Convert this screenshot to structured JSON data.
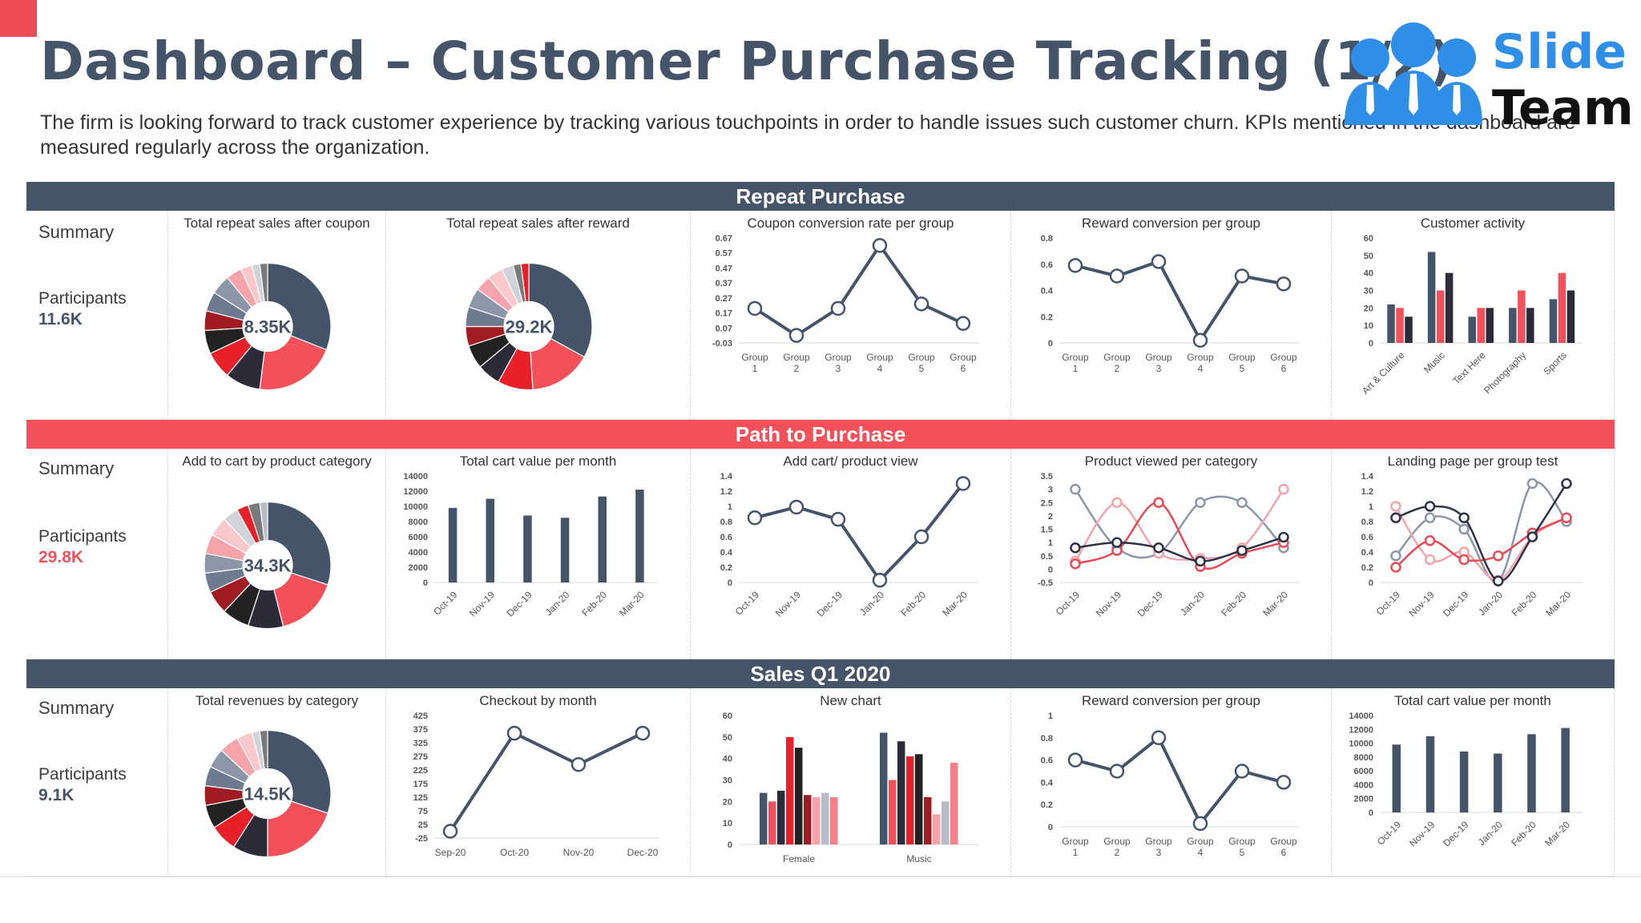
{
  "header": {
    "title": "Dashboard – Customer Purchase Tracking (1/2)",
    "description": "The firm is looking forward to track customer experience by tracking various touchpoints in order to handle issues such customer churn. KPIs mentioned in the dashboard are measured regularly across the organization.",
    "logo_line1": "Slide",
    "logo_line2": "Team"
  },
  "colors": {
    "dark": "#46546a",
    "red": "#f4505a",
    "darkred": "#a01c22",
    "brightred": "#e8202a",
    "black": "#222222",
    "pink": "#f6a3ab",
    "grey": "#b5bcc7"
  },
  "sections": [
    {
      "band": "Repeat Purchase",
      "summary": "Summary",
      "participants_label": "Participants",
      "participants_value": "11.6K"
    },
    {
      "band": "Path to Purchase",
      "summary": "Summary",
      "participants_label": "Participants",
      "participants_value": "29.8K"
    },
    {
      "band": "Sales Q1 2020",
      "summary": "Summary",
      "participants_label": "Participants",
      "participants_value": "9.1K"
    }
  ],
  "chart_data": [
    {
      "id": "r1c1",
      "type": "pie",
      "title": "Total repeat sales after coupon",
      "center_label": "8.35K",
      "values": [
        31,
        21,
        9,
        7,
        6,
        5,
        5,
        5,
        4,
        3,
        2,
        2
      ],
      "colors": [
        "#46546a",
        "#f4505a",
        "#2b2b3a",
        "#e8202a",
        "#222222",
        "#a01c22",
        "#6d7a8f",
        "#8b96a8",
        "#f6a3ab",
        "#fbc8cc",
        "#d0d4da",
        "#7a7a7a"
      ]
    },
    {
      "id": "r1c2",
      "type": "pie",
      "title": "Total repeat sales after reward",
      "center_label": "29.2K",
      "values": [
        33,
        16,
        9,
        6,
        6,
        5,
        5,
        5,
        4,
        4,
        3,
        2,
        2
      ],
      "colors": [
        "#46546a",
        "#f4505a",
        "#e8202a",
        "#2b2b3a",
        "#222222",
        "#a01c22",
        "#6d7a8f",
        "#8b96a8",
        "#f6a3ab",
        "#fbc8cc",
        "#d0d4da",
        "#7a7a7a",
        "#e8202a"
      ]
    },
    {
      "id": "r1c3",
      "type": "line",
      "title": "Coupon conversion rate per group",
      "categories": [
        "Group 1",
        "Group 2",
        "Group 3",
        "Group 4",
        "Group 5",
        "Group 6"
      ],
      "y_ticks": [
        "0.67",
        "0.57",
        "0.47",
        "0.37",
        "0.27",
        "0.17",
        "0.07",
        "-0.03"
      ],
      "ylim": [
        -0.03,
        0.67
      ],
      "series": [
        {
          "color": "#46546a",
          "values": [
            0.2,
            0.02,
            0.2,
            0.62,
            0.23,
            0.1
          ]
        }
      ]
    },
    {
      "id": "r1c4",
      "type": "line",
      "title": "Reward conversion per group",
      "categories": [
        "Group 1",
        "Group 2",
        "Group 3",
        "Group 4",
        "Group 5",
        "Group 6"
      ],
      "y_ticks": [
        "0.8",
        "0.6",
        "0.4",
        "0.2",
        "0"
      ],
      "ylim": [
        0,
        0.8
      ],
      "series": [
        {
          "color": "#46546a",
          "values": [
            0.59,
            0.51,
            0.62,
            0.02,
            0.51,
            0.45
          ]
        }
      ]
    },
    {
      "id": "r1c5",
      "type": "bar",
      "title": "Customer activity",
      "categories": [
        "Art & Culture",
        "Music",
        "Text Here",
        "Photography",
        "Sports"
      ],
      "y_ticks": [
        "60",
        "50",
        "40",
        "30",
        "20",
        "10",
        "0"
      ],
      "ylim": [
        0,
        60
      ],
      "series": [
        {
          "color": "#46546a",
          "values": [
            22,
            52,
            15,
            20,
            25
          ]
        },
        {
          "color": "#f4505a",
          "values": [
            20,
            30,
            20,
            30,
            40
          ]
        },
        {
          "color": "#2b2b3a",
          "values": [
            15,
            40,
            20,
            20,
            30
          ]
        }
      ]
    },
    {
      "id": "r2c1",
      "type": "pie",
      "title": "Add to cart by product category",
      "center_label": "34.3K",
      "values": [
        30,
        16,
        9,
        7,
        6,
        5,
        5,
        5,
        5,
        4,
        3,
        3,
        2
      ],
      "colors": [
        "#46546a",
        "#f4505a",
        "#2b2b3a",
        "#222222",
        "#a01c22",
        "#6d7a8f",
        "#8b96a8",
        "#f6a3ab",
        "#fbc8cc",
        "#d0d4da",
        "#e8202a",
        "#7a7a7a",
        "#b5bcc7"
      ]
    },
    {
      "id": "r2c2",
      "type": "bar",
      "title": "Total cart value per month",
      "categories": [
        "Oct-19",
        "Nov-19",
        "Dec-19",
        "Jan-20",
        "Feb-20",
        "Mar-20"
      ],
      "y_ticks": [
        "14000",
        "12000",
        "10000",
        "8000",
        "6000",
        "4000",
        "2000",
        "0"
      ],
      "ylim": [
        0,
        14000
      ],
      "series": [
        {
          "color": "#46546a",
          "values": [
            9800,
            11000,
            8800,
            8500,
            11300,
            12200
          ]
        }
      ]
    },
    {
      "id": "r2c3",
      "type": "line",
      "title": "Add cart/ product view",
      "categories": [
        "Oct-19",
        "Nov-19",
        "Dec-19",
        "Jan-20",
        "Feb-20",
        "Mar-20"
      ],
      "y_ticks": [
        "1.4",
        "1.2",
        "1",
        "0.8",
        "0.6",
        "0.4",
        "0.2",
        "0"
      ],
      "ylim": [
        0,
        1.4
      ],
      "series": [
        {
          "color": "#46546a",
          "values": [
            0.85,
            0.99,
            0.83,
            0.03,
            0.6,
            1.3
          ]
        }
      ]
    },
    {
      "id": "r2c4",
      "type": "line",
      "title": "Product viewed per category",
      "categories": [
        "Oct-19",
        "Nov-19",
        "Dec-19",
        "Jan-20",
        "Feb-20",
        "Mar-20"
      ],
      "y_ticks": [
        "3.5",
        "3",
        "2.5",
        "2",
        "1.5",
        "1",
        "0.5",
        "0",
        "-0.5"
      ],
      "ylim": [
        -0.5,
        3.5
      ],
      "smooth": true,
      "series": [
        {
          "color": "#8b96a8",
          "values": [
            3.0,
            0.8,
            0.6,
            2.5,
            2.5,
            0.8
          ]
        },
        {
          "color": "#f6a3ab",
          "values": [
            0.3,
            2.5,
            0.6,
            0.4,
            0.8,
            3.0
          ]
        },
        {
          "color": "#e94a55",
          "values": [
            0.2,
            0.7,
            2.5,
            0.1,
            0.6,
            1.0
          ]
        },
        {
          "color": "#2b3345",
          "values": [
            0.8,
            1.0,
            0.8,
            0.3,
            0.7,
            1.2
          ]
        }
      ]
    },
    {
      "id": "r2c5",
      "type": "line",
      "title": "Landing page per group test",
      "categories": [
        "Oct-19",
        "Nov-19",
        "Dec-19",
        "Jan-20",
        "Feb-20",
        "Mar-20"
      ],
      "y_ticks": [
        "1.4",
        "1.2",
        "1",
        "0.8",
        "0.6",
        "0.4",
        "0.2",
        "0"
      ],
      "ylim": [
        0,
        1.4
      ],
      "smooth": true,
      "series": [
        {
          "color": "#8b96a8",
          "values": [
            0.35,
            0.85,
            0.7,
            0.02,
            1.3,
            0.8
          ]
        },
        {
          "color": "#f6a3ab",
          "values": [
            1.0,
            0.3,
            0.4,
            0.03,
            0.6,
            0.85
          ]
        },
        {
          "color": "#e94a55",
          "values": [
            0.2,
            0.55,
            0.3,
            0.35,
            0.65,
            0.85
          ]
        },
        {
          "color": "#2b3345",
          "values": [
            0.85,
            1.0,
            0.85,
            0.02,
            0.6,
            1.3
          ]
        }
      ]
    },
    {
      "id": "r3c1",
      "type": "pie",
      "title": "Total revenues by category",
      "center_label": "14.5K",
      "values": [
        30,
        20,
        9,
        7,
        6,
        5,
        5,
        5,
        5,
        4,
        2,
        2
      ],
      "colors": [
        "#46546a",
        "#f4505a",
        "#2b2b3a",
        "#e8202a",
        "#222222",
        "#a01c22",
        "#6d7a8f",
        "#8b96a8",
        "#f6a3ab",
        "#fbc8cc",
        "#d0d4da",
        "#7a7a7a"
      ]
    },
    {
      "id": "r3c2",
      "type": "line",
      "title": "Checkout by month",
      "categories": [
        "Sep-20",
        "Oct-20",
        "Nov-20",
        "Dec-20"
      ],
      "y_ticks": [
        "425",
        "375",
        "325",
        "275",
        "225",
        "175",
        "125",
        "75",
        "25",
        "-25"
      ],
      "ylim": [
        -25,
        425
      ],
      "series": [
        {
          "color": "#46546a",
          "values": [
            0,
            360,
            245,
            360
          ]
        }
      ]
    },
    {
      "id": "r3c3",
      "type": "bar",
      "title": "New chart",
      "categories": [
        "Female",
        "Music"
      ],
      "y_ticks": [
        "60",
        "50",
        "40",
        "30",
        "20",
        "10",
        "0"
      ],
      "ylim": [
        0,
        60
      ],
      "series": [
        {
          "color": "#46546a",
          "values": [
            24,
            52
          ]
        },
        {
          "color": "#f4505a",
          "values": [
            20,
            30
          ]
        },
        {
          "color": "#2b2b3a",
          "values": [
            25,
            48
          ]
        },
        {
          "color": "#e8202a",
          "values": [
            50,
            41
          ]
        },
        {
          "color": "#222222",
          "values": [
            45,
            42
          ]
        },
        {
          "color": "#a01c22",
          "values": [
            23,
            22
          ]
        },
        {
          "color": "#f6a3ab",
          "values": [
            22,
            14
          ]
        },
        {
          "color": "#b5bcc7",
          "values": [
            24,
            20
          ]
        },
        {
          "color": "#f4808a",
          "values": [
            22,
            38
          ]
        }
      ]
    },
    {
      "id": "r3c4",
      "type": "line",
      "title": "Reward conversion per group",
      "categories": [
        "Group 1",
        "Group 2",
        "Group 3",
        "Group 4",
        "Group 5",
        "Group 6"
      ],
      "y_ticks": [
        "1",
        "0.8",
        "0.6",
        "0.4",
        "0.2",
        "0"
      ],
      "ylim": [
        0,
        1
      ],
      "series": [
        {
          "color": "#46546a",
          "values": [
            0.6,
            0.5,
            0.8,
            0.03,
            0.5,
            0.4
          ]
        }
      ]
    },
    {
      "id": "r3c5",
      "type": "bar",
      "title": "Total cart value per month",
      "categories": [
        "Oct-19",
        "Nov-19",
        "Dec-19",
        "Jan-20",
        "Feb-20",
        "Mar-20"
      ],
      "y_ticks": [
        "14000",
        "12000",
        "10000",
        "8000",
        "6000",
        "4000",
        "2000",
        "0"
      ],
      "ylim": [
        0,
        14000
      ],
      "series": [
        {
          "color": "#46546a",
          "values": [
            9800,
            11000,
            8800,
            8500,
            11300,
            12200
          ]
        }
      ]
    }
  ]
}
